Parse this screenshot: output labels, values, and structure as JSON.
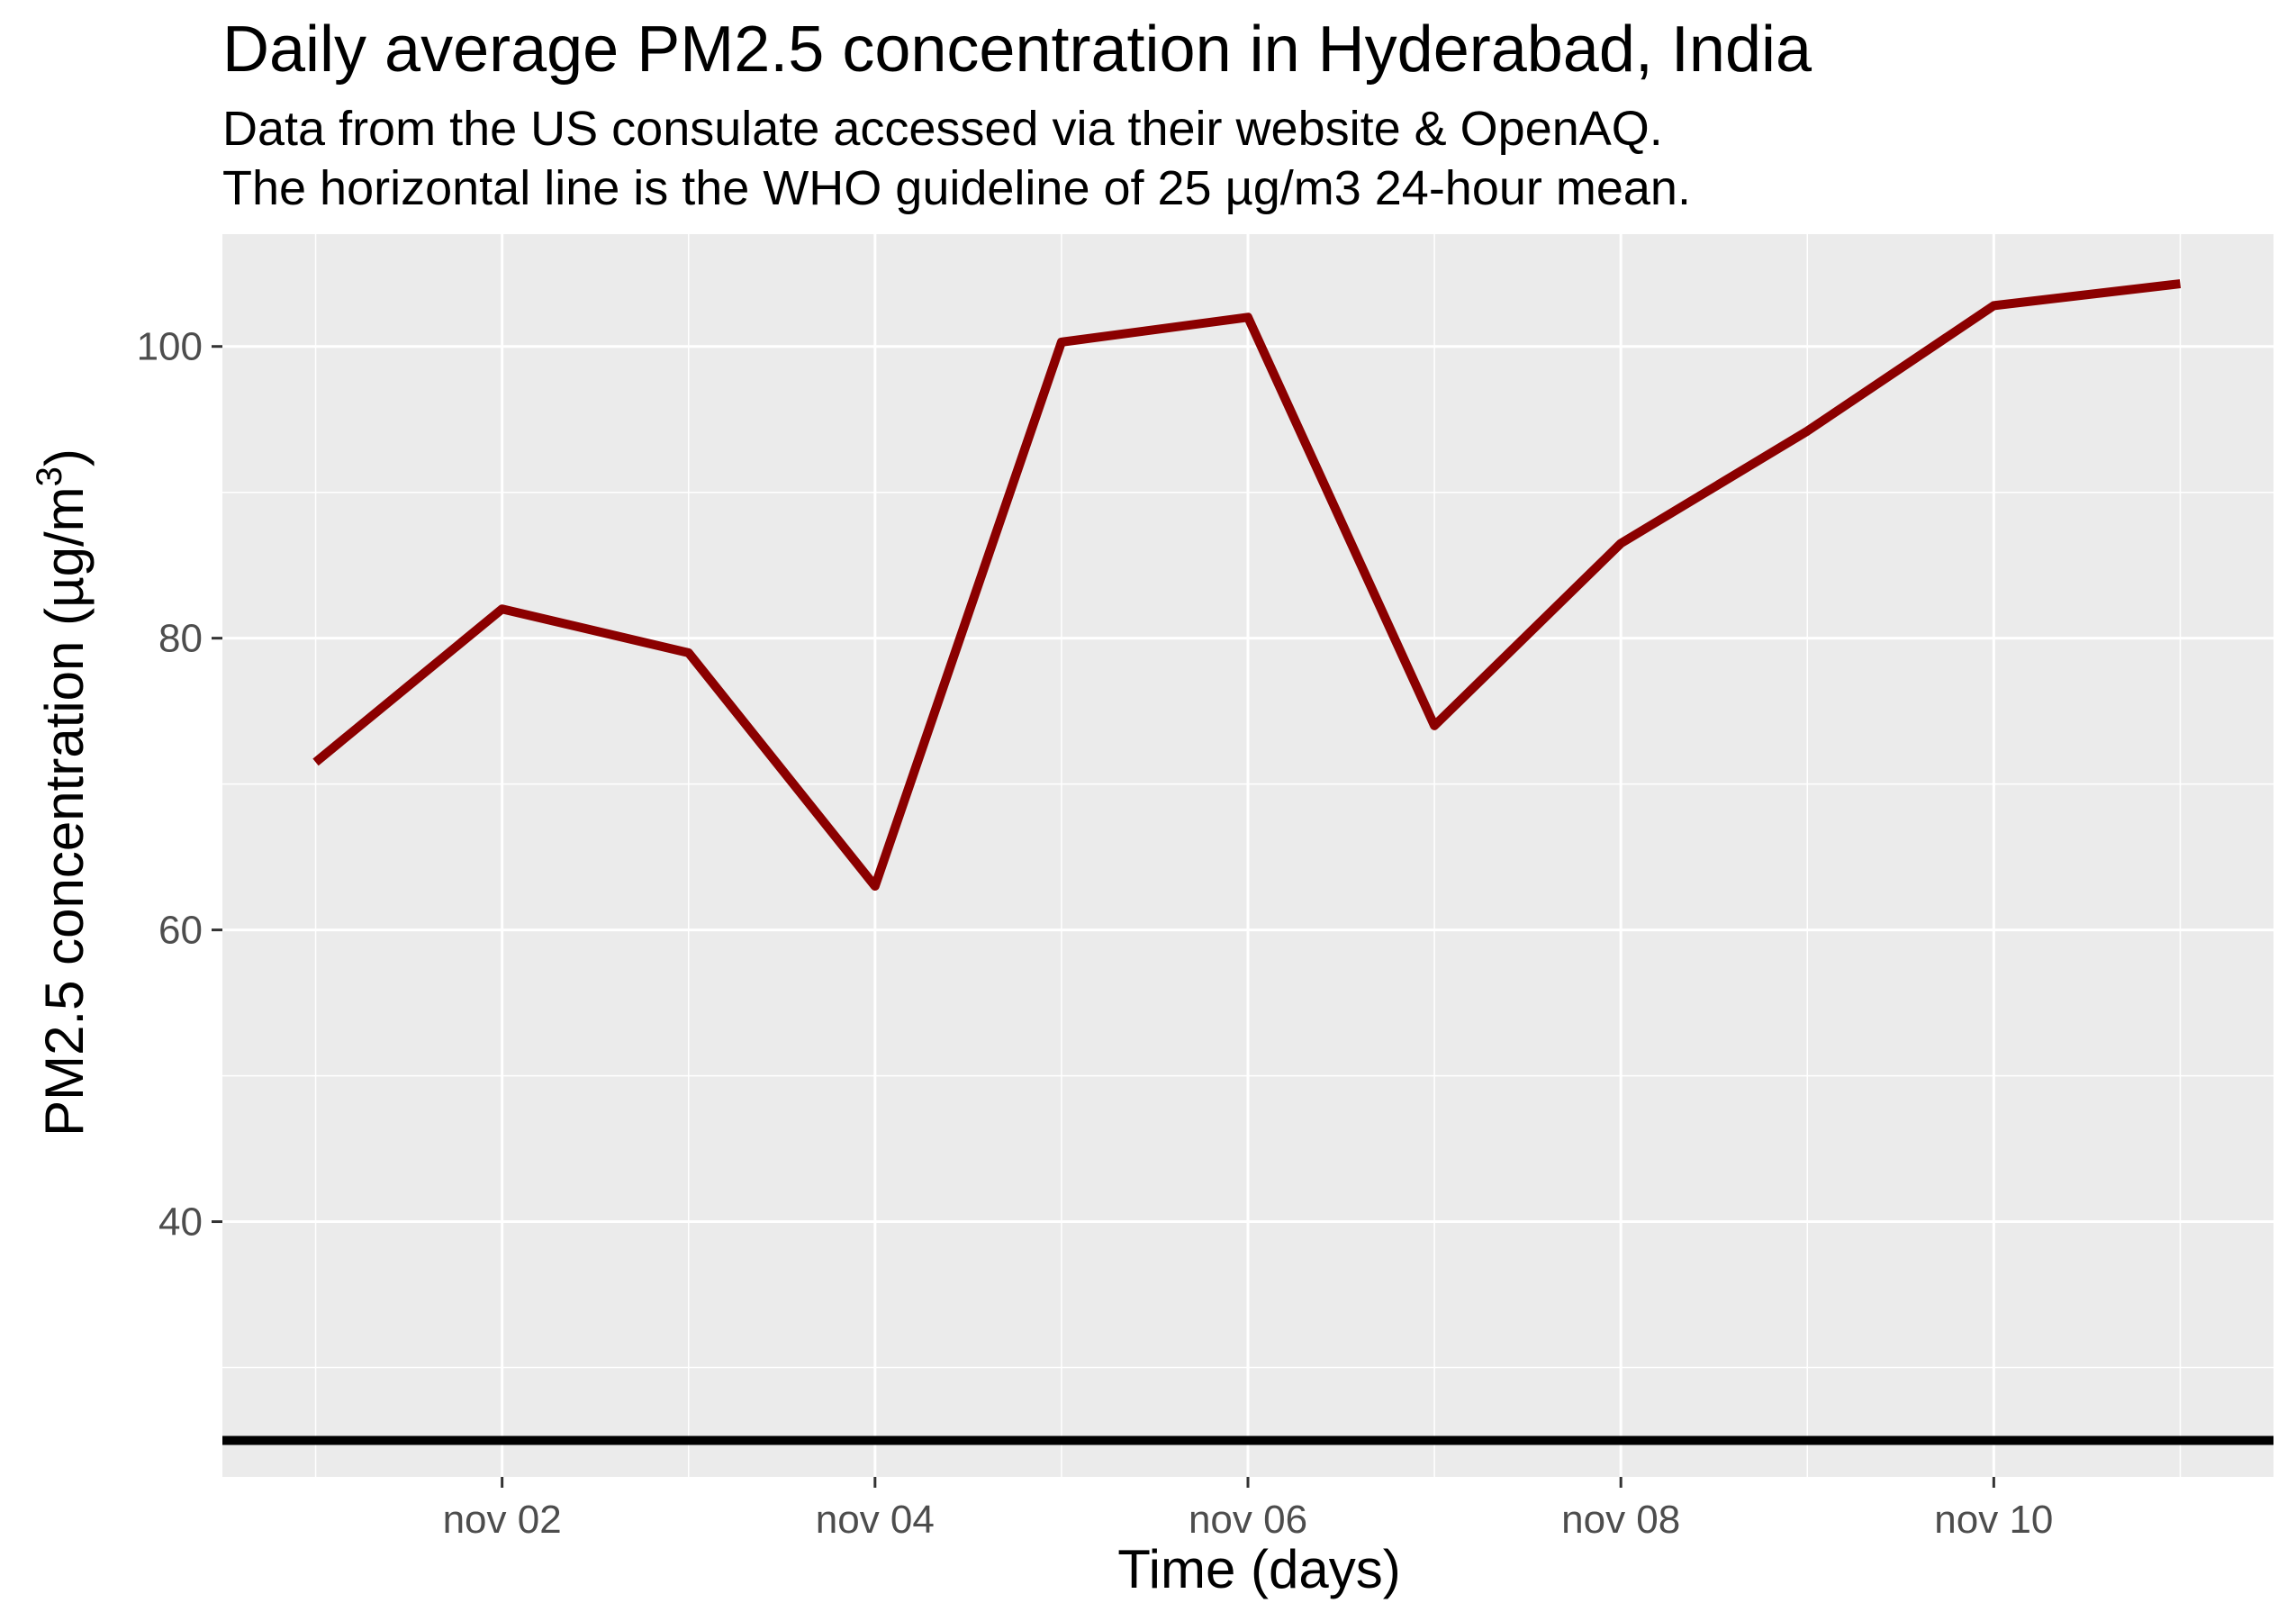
{
  "chart_data": {
    "type": "line",
    "title": "Daily average PM2.5 concentration in Hyderabad, India",
    "subtitle_lines": [
      "Data from the US consulate accessed via their website & OpenAQ.",
      "The horizontal line is the WHO guideline of 25 µg/m3 24-hour mean."
    ],
    "xlabel": "Time (days)",
    "ylabel": "PM2.5 concentration (µg/m",
    "ylabel_superscript": "3",
    "ylabel_close": ")",
    "x": [
      "2019-11-01",
      "2019-11-02",
      "2019-11-03",
      "2019-11-04",
      "2019-11-05",
      "2019-11-06",
      "2019-11-07",
      "2019-11-08",
      "2019-11-09",
      "2019-11-10",
      "2019-11-11"
    ],
    "series": [
      {
        "values": [
          71.5,
          82,
          79,
          63,
          100.3,
          102,
          74,
          86.5,
          94.2,
          102.8,
          104.3
        ],
        "color": "#8b0000"
      }
    ],
    "reference_line": {
      "y": 25,
      "color": "#000000"
    },
    "x_ticks": [
      {
        "index": 1,
        "label": "nov 02"
      },
      {
        "index": 3,
        "label": "nov 04"
      },
      {
        "index": 5,
        "label": "nov 06"
      },
      {
        "index": 7,
        "label": "nov 08"
      },
      {
        "index": 9,
        "label": "nov 10"
      }
    ],
    "y_ticks": [
      40,
      60,
      80,
      100
    ],
    "ylim": [
      22.5,
      107.7
    ],
    "grid": true,
    "panel_background": "#ebebeb",
    "grid_color": "#ffffff"
  }
}
